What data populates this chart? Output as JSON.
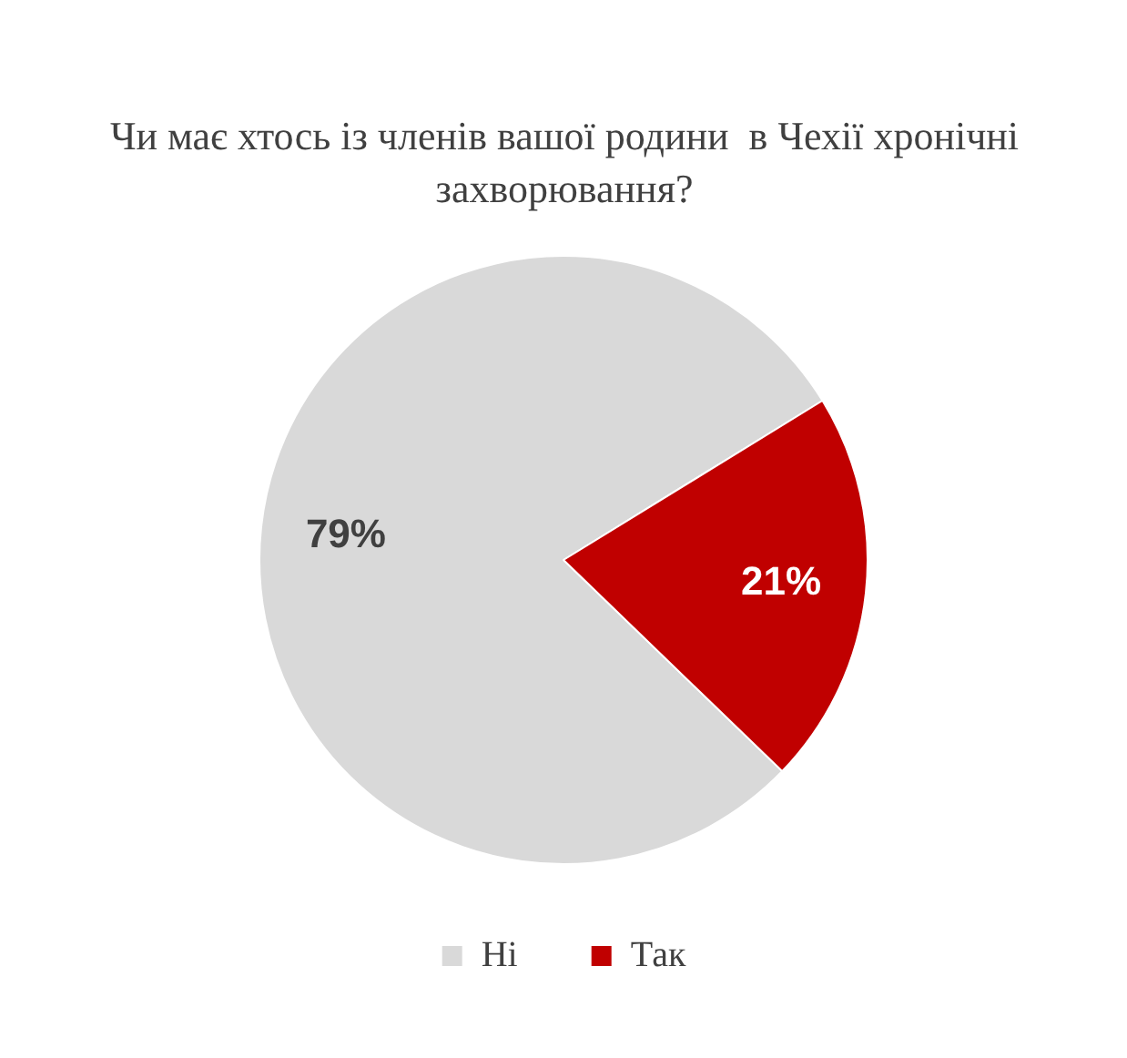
{
  "chart_data": {
    "type": "pie",
    "title": "Чи має хтось із членів вашої родини  в Чехії хронічні захворювання?",
    "categories": [
      "Ні",
      "Так"
    ],
    "values": [
      79,
      21
    ],
    "colors": [
      "#d9d9d9",
      "#c00000"
    ],
    "value_labels": [
      "79%",
      "21%"
    ],
    "legend": "bottom"
  }
}
